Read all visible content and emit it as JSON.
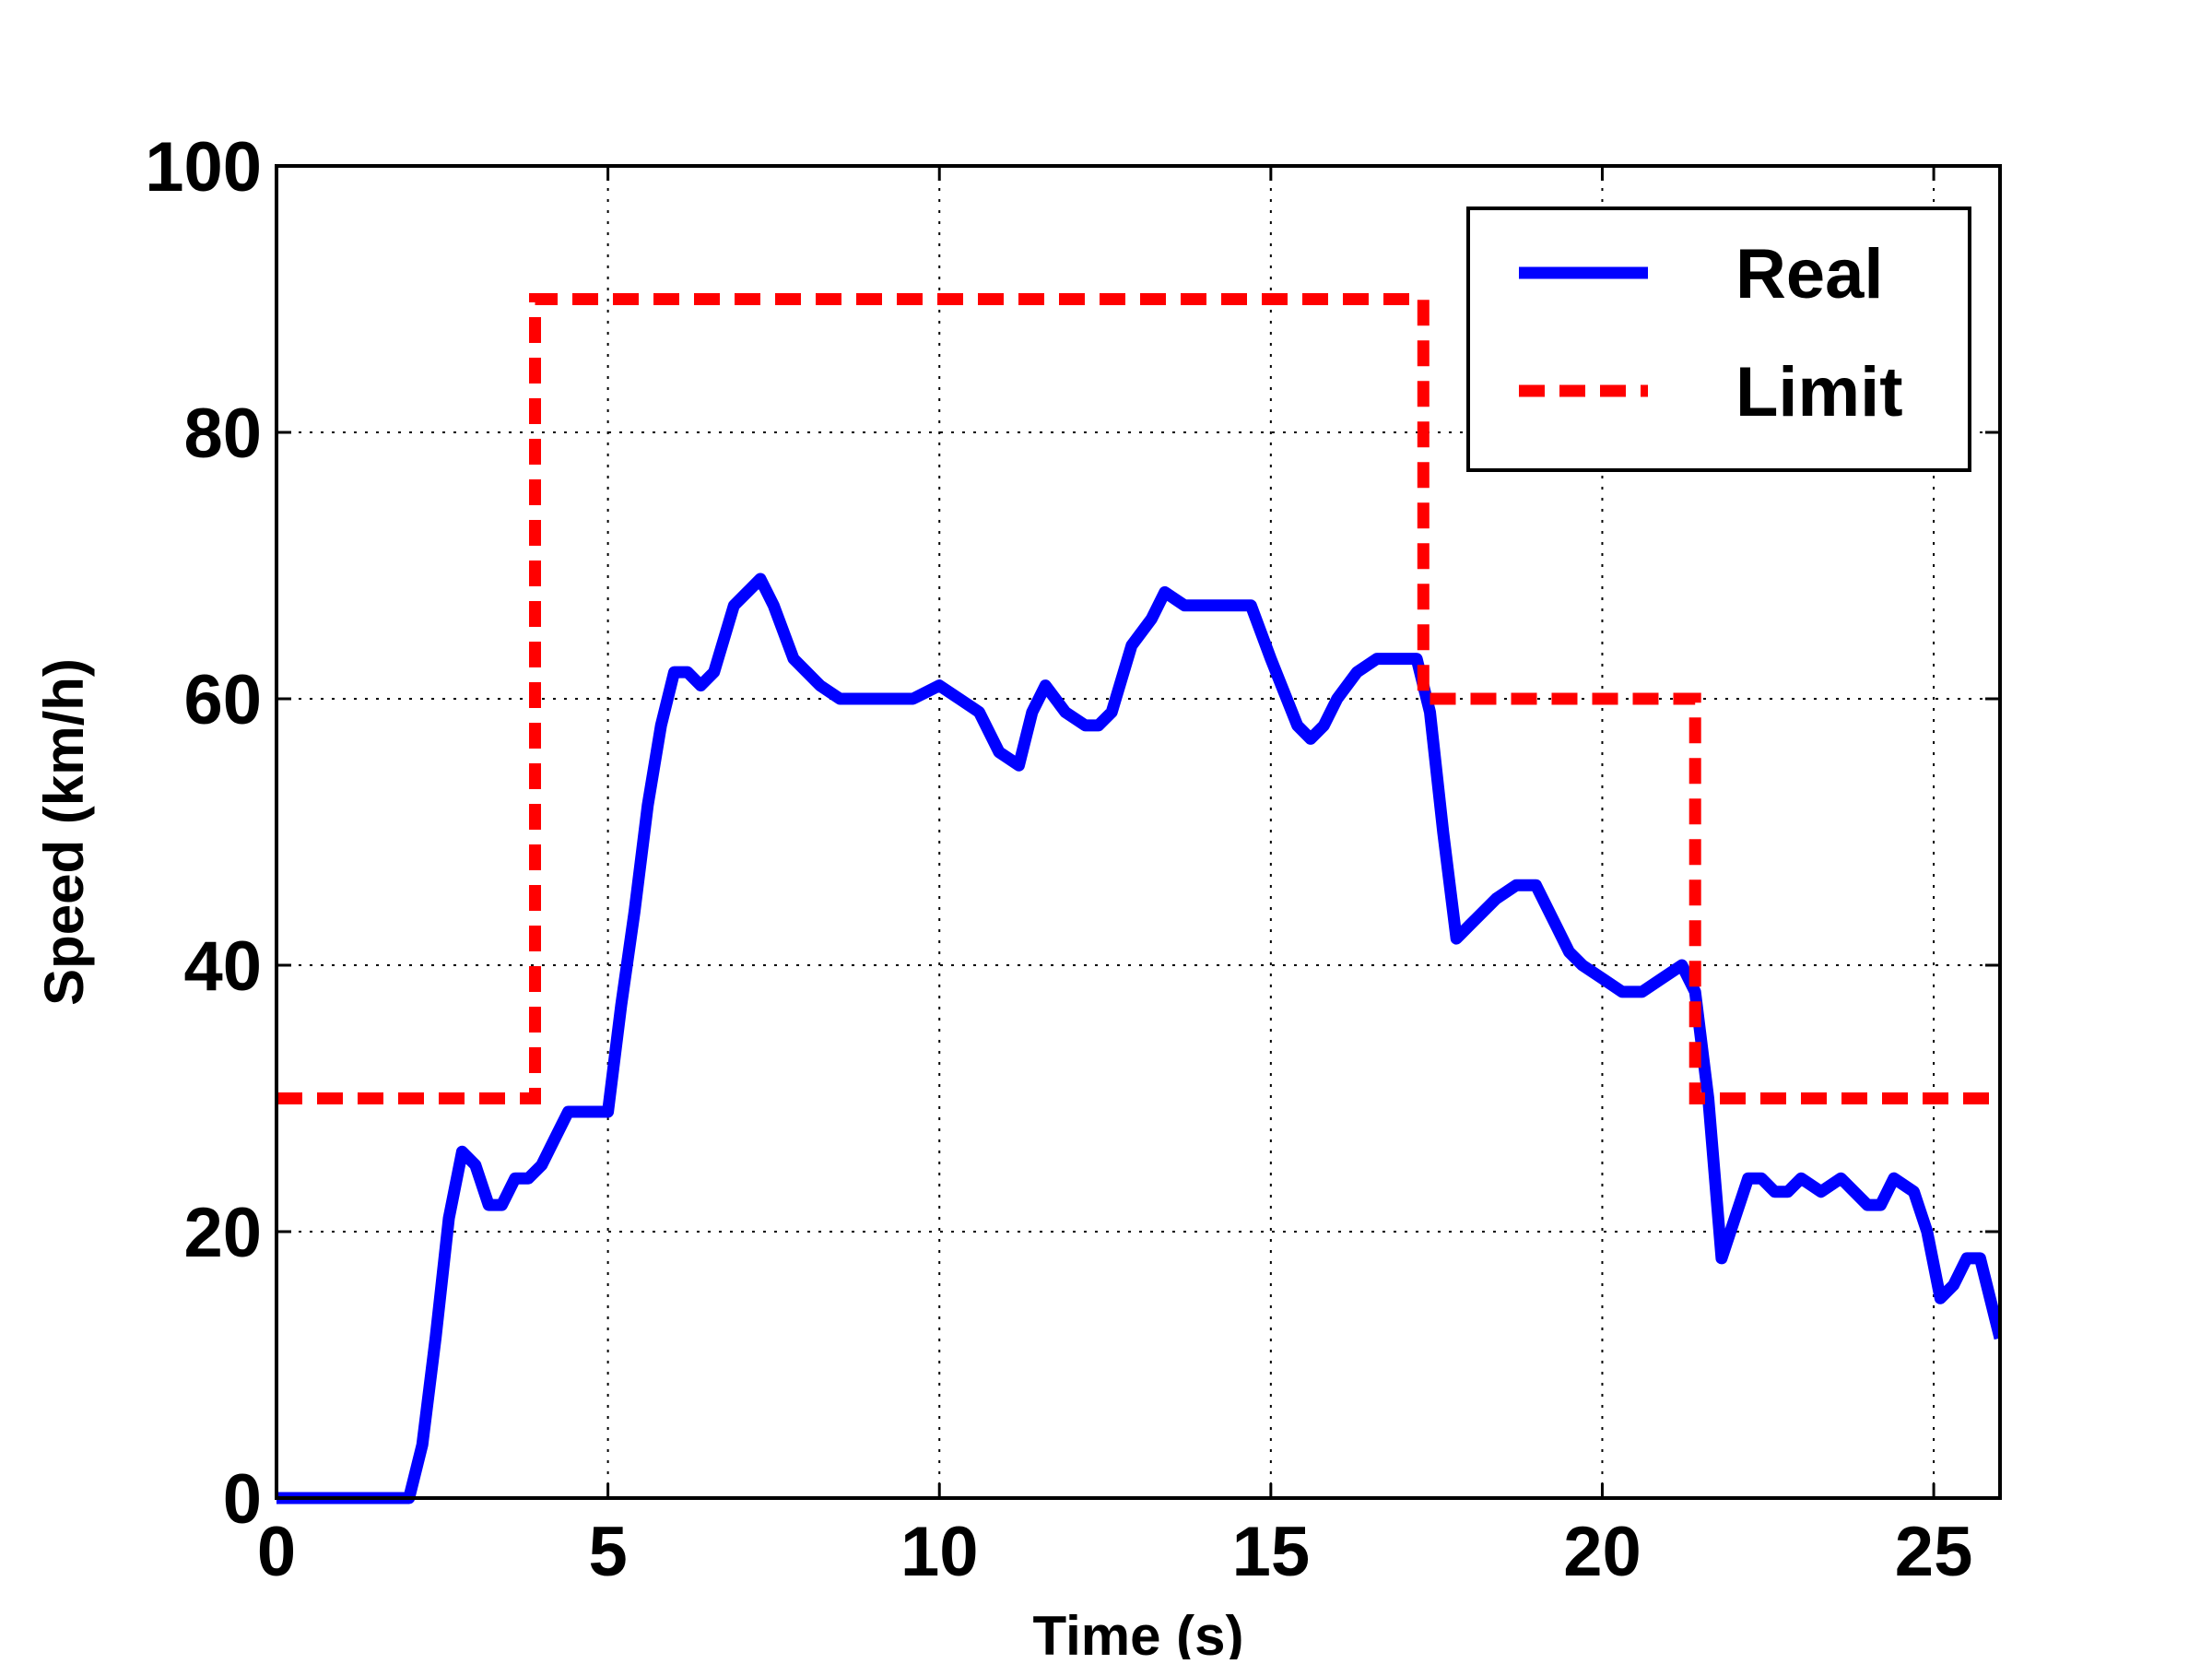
{
  "chart_data": {
    "type": "line",
    "title": "",
    "xlabel": "Time (s)",
    "ylabel": "Speed (km/h)",
    "xlim": [
      0,
      26
    ],
    "ylim": [
      0,
      100
    ],
    "xticks": [
      0,
      5,
      10,
      15,
      20,
      25
    ],
    "yticks": [
      0,
      20,
      40,
      60,
      80,
      100
    ],
    "xtick_labels": [
      "0",
      "5",
      "10",
      "15",
      "20",
      "25"
    ],
    "ytick_labels": [
      "0",
      "20",
      "40",
      "60",
      "80",
      "100"
    ],
    "grid": true,
    "legend": "top-right",
    "series": [
      {
        "name": "Real",
        "color": "#0000ff",
        "style": "solid",
        "x": [
          0,
          2.0,
          2.2,
          2.4,
          2.6,
          2.8,
          3.0,
          3.2,
          3.4,
          3.6,
          3.8,
          4.0,
          4.2,
          4.4,
          4.6,
          5.0,
          5.2,
          5.4,
          5.6,
          5.8,
          6.0,
          6.2,
          6.4,
          6.6,
          6.9,
          7.1,
          7.3,
          7.5,
          7.8,
          8.0,
          8.2,
          8.5,
          8.8,
          9.0,
          9.3,
          9.6,
          10.0,
          10.3,
          10.6,
          10.9,
          11.2,
          11.4,
          11.6,
          11.9,
          12.2,
          12.4,
          12.6,
          12.9,
          13.2,
          13.4,
          13.7,
          14.0,
          14.2,
          14.3,
          14.5,
          14.7,
          15.0,
          15.4,
          15.6,
          15.8,
          16.0,
          16.3,
          16.6,
          16.9,
          17.2,
          17.4,
          17.6,
          17.8,
          18.0,
          18.2,
          18.4,
          18.7,
          19.0,
          19.3,
          19.5,
          19.7,
          20.0,
          20.3,
          20.6,
          20.9,
          21.2,
          21.4,
          21.6,
          21.8,
          22.0,
          22.2,
          22.4,
          22.6,
          22.8,
          23.0,
          23.3,
          23.6,
          24.0,
          24.2,
          24.4,
          24.7,
          24.9,
          25.1,
          25.3,
          25.5,
          25.7,
          26.0
        ],
        "y": [
          0,
          0,
          4,
          12,
          21,
          26,
          25,
          22,
          22,
          24,
          24,
          25,
          27,
          29,
          29,
          29,
          37,
          44,
          52,
          58,
          62,
          62,
          61,
          62,
          67,
          68,
          69,
          67,
          63,
          62,
          61,
          60,
          60,
          60,
          60,
          60,
          61,
          60,
          59,
          56,
          55,
          59,
          61,
          59,
          58,
          58,
          59,
          64,
          66,
          68,
          67,
          67,
          67,
          67,
          67,
          67,
          63,
          58,
          57,
          58,
          60,
          62,
          63,
          63,
          63,
          59,
          50,
          42,
          43,
          44,
          45,
          46,
          46,
          43,
          41,
          40,
          39,
          38,
          38,
          39,
          40,
          38,
          30,
          18,
          21,
          24,
          24,
          23,
          23,
          24,
          23,
          24,
          22,
          22,
          24,
          23,
          20,
          15,
          16,
          18,
          18,
          12
        ]
      },
      {
        "name": "Limit",
        "color": "#ff0000",
        "style": "dashed",
        "x": [
          0,
          3.9,
          3.9,
          17.3,
          17.3,
          21.4,
          21.4,
          26
        ],
        "y": [
          30,
          30,
          90,
          90,
          60,
          60,
          30,
          30
        ]
      }
    ]
  }
}
